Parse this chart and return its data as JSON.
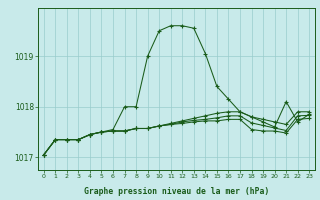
{
  "title": "Graphe pression niveau de la mer (hPa)",
  "background_color": "#c8eaea",
  "grid_color": "#99cccc",
  "line_color": "#1a5c1a",
  "main_series": [
    1017.05,
    1017.35,
    1017.35,
    1017.35,
    1017.45,
    1017.5,
    1017.55,
    1018.0,
    1018.0,
    1019.0,
    1019.5,
    1019.6,
    1019.6,
    1019.55,
    1019.05,
    1018.4,
    1018.15,
    1017.9,
    1017.8,
    1017.7,
    1017.6,
    1018.1,
    1017.7,
    1017.85
  ],
  "flat_series1": [
    1017.05,
    1017.35,
    1017.35,
    1017.35,
    1017.45,
    1017.5,
    1017.52,
    1017.52,
    1017.57,
    1017.57,
    1017.62,
    1017.65,
    1017.67,
    1017.7,
    1017.72,
    1017.72,
    1017.75,
    1017.75,
    1017.55,
    1017.52,
    1017.52,
    1017.48,
    1017.75,
    1017.77
  ],
  "flat_series2": [
    1017.05,
    1017.35,
    1017.35,
    1017.35,
    1017.45,
    1017.5,
    1017.52,
    1017.52,
    1017.57,
    1017.57,
    1017.62,
    1017.65,
    1017.7,
    1017.73,
    1017.75,
    1017.78,
    1017.82,
    1017.82,
    1017.68,
    1017.63,
    1017.58,
    1017.53,
    1017.82,
    1017.83
  ],
  "flat_series3": [
    1017.05,
    1017.35,
    1017.35,
    1017.35,
    1017.45,
    1017.5,
    1017.52,
    1017.52,
    1017.57,
    1017.57,
    1017.62,
    1017.67,
    1017.72,
    1017.77,
    1017.82,
    1017.87,
    1017.9,
    1017.9,
    1017.8,
    1017.75,
    1017.7,
    1017.65,
    1017.9,
    1017.9
  ],
  "ylim": [
    1016.75,
    1019.95
  ],
  "yticks": [
    1017,
    1018,
    1019
  ],
  "xlim": [
    -0.5,
    23.5
  ],
  "x_labels": [
    "0",
    "1",
    "2",
    "3",
    "4",
    "5",
    "6",
    "7",
    "8",
    "9",
    "10",
    "11",
    "12",
    "13",
    "14",
    "15",
    "16",
    "17",
    "18",
    "19",
    "20",
    "21",
    "22",
    "23"
  ],
  "figsize": [
    3.2,
    2.0
  ],
  "dpi": 100
}
